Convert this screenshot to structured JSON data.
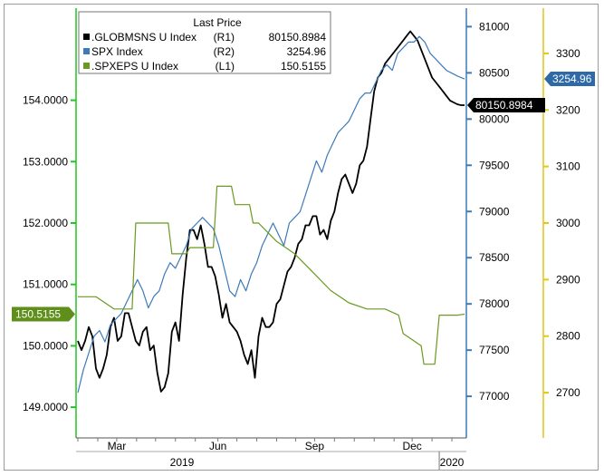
{
  "chart_data": {
    "type": "line",
    "legend": {
      "title": "Last Price",
      "placement": "top-left",
      "entries": [
        {
          "label": ".GLOBMSNS U Index",
          "axis": "(R1)",
          "value": "80150.8984",
          "color": "#000000"
        },
        {
          "label": "SPX Index",
          "axis": "(R2)",
          "value": "3254.96",
          "color": "#3d7ab8"
        },
        {
          "label": ".SPXEPS U Index",
          "axis": "(L1)",
          "value": "150.5155",
          "color": "#6a9a1f"
        }
      ]
    },
    "x_ticks": [
      "Mar",
      "Jun",
      "Sep",
      "Dec"
    ],
    "x_years": [
      "2019",
      "2020"
    ],
    "axes": {
      "L1": {
        "min": 148.5,
        "max": 155.5,
        "ticks": [
          "149.0000",
          "150.0000",
          "151.0000",
          "152.0000",
          "153.0000",
          "154.0000"
        ],
        "color": "#22c422"
      },
      "R1": {
        "min": 76550,
        "max": 81200,
        "ticks": [
          "77000",
          "77500",
          "78000",
          "78500",
          "79000",
          "79500",
          "80000",
          "80500",
          "81000"
        ],
        "color": "#3d7ab8"
      },
      "R2": {
        "min": 2620,
        "max": 3380,
        "ticks": [
          "2700",
          "2800",
          "2900",
          "3000",
          "3100",
          "3200",
          "3300"
        ],
        "color": "#e6c619"
      }
    },
    "last_value_tags": {
      "L1": "150.5155",
      "R1": "80150.8984",
      "R2": "3254.96"
    },
    "series": [
      {
        "name": ".GLOBMSNS U Index",
        "axis": "R1",
        "color": "#000000",
        "x": [
          0,
          4,
          8,
          12,
          16,
          20,
          24,
          28,
          32,
          36,
          40,
          44,
          48,
          52,
          56,
          60,
          64,
          68,
          72,
          76,
          80,
          84,
          88,
          92,
          96,
          100,
          104,
          108,
          112,
          116,
          120,
          124,
          128,
          132,
          136,
          140,
          144,
          148,
          152,
          156,
          160,
          164,
          168,
          172,
          176,
          180,
          184,
          188,
          192,
          196,
          200,
          204,
          208,
          212,
          216,
          220,
          224,
          228,
          232,
          236,
          240,
          244,
          248,
          252,
          256,
          260,
          264,
          268,
          272,
          276,
          280,
          284,
          288,
          292,
          296,
          300,
          304,
          308,
          312,
          316,
          320,
          324,
          328,
          332,
          336,
          340,
          344,
          348,
          352,
          356,
          360,
          364,
          368,
          372,
          376,
          380,
          384,
          388,
          392,
          396,
          400,
          404,
          408,
          412,
          416,
          420,
          424,
          428
        ],
        "y": [
          77600,
          77500,
          77600,
          77750,
          77650,
          77300,
          77200,
          77300,
          77450,
          77750,
          77850,
          77600,
          77650,
          77900,
          77900,
          77750,
          77600,
          77550,
          77700,
          77750,
          77500,
          77550,
          77250,
          77050,
          77100,
          77250,
          77700,
          77800,
          77600,
          78100,
          78500,
          78800,
          78800,
          78700,
          78850,
          78650,
          78400,
          78400,
          78300,
          78100,
          77850,
          78000,
          77800,
          77750,
          77700,
          77600,
          77450,
          77350,
          77500,
          77200,
          77650,
          77850,
          77750,
          77750,
          77800,
          78000,
          78050,
          78200,
          78350,
          78400,
          78500,
          78650,
          78700,
          78850,
          78850,
          78950,
          78950,
          78750,
          78800,
          78700,
          78900,
          79000,
          79200,
          79350,
          79400,
          79300,
          79200,
          79300,
          79500,
          79550,
          79700,
          80000,
          80300,
          80450,
          80500,
          80600,
          80650,
          80700,
          80750,
          80800,
          80850,
          80900,
          80950,
          80900,
          80850,
          80750,
          80650,
          80550,
          80450,
          80400,
          80350,
          80300,
          80250,
          80200,
          80180,
          80160,
          80150,
          80150
        ]
      },
      {
        "name": "SPX Index",
        "axis": "R2",
        "color": "#3d7ab8",
        "x": [
          0,
          6,
          12,
          18,
          24,
          30,
          36,
          42,
          48,
          54,
          60,
          66,
          72,
          78,
          84,
          90,
          96,
          102,
          108,
          114,
          120,
          126,
          132,
          138,
          144,
          150,
          156,
          162,
          168,
          174,
          180,
          186,
          192,
          198,
          204,
          210,
          216,
          222,
          228,
          234,
          240,
          246,
          252,
          258,
          264,
          270,
          276,
          282,
          288,
          294,
          300,
          306,
          312,
          318,
          324,
          330,
          336,
          342,
          348,
          354,
          360,
          366,
          372,
          378,
          384,
          390,
          396,
          402,
          408,
          414,
          420,
          426,
          428
        ],
        "y": [
          2700,
          2740,
          2770,
          2800,
          2810,
          2790,
          2820,
          2830,
          2840,
          2860,
          2880,
          2900,
          2880,
          2850,
          2870,
          2880,
          2910,
          2930,
          2920,
          2940,
          2960,
          2990,
          3000,
          3010,
          3000,
          2990,
          2960,
          2920,
          2880,
          2870,
          2900,
          2880,
          2910,
          2930,
          2960,
          2980,
          3000,
          2980,
          2960,
          3000,
          3010,
          3020,
          3050,
          3080,
          3110,
          3090,
          3120,
          3140,
          3160,
          3170,
          3180,
          3200,
          3220,
          3230,
          3230,
          3250,
          3270,
          3280,
          3270,
          3300,
          3310,
          3320,
          3320,
          3330,
          3320,
          3300,
          3290,
          3280,
          3270,
          3265,
          3260,
          3256,
          3255
        ]
      },
      {
        "name": ".SPXEPS U Index",
        "axis": "L1",
        "color": "#6a9a1f",
        "x": [
          0,
          20,
          40,
          44,
          60,
          64,
          100,
          104,
          120,
          124,
          150,
          154,
          170,
          174,
          190,
          194,
          200,
          220,
          240,
          260,
          280,
          300,
          320,
          340,
          355,
          360,
          380,
          383,
          395,
          400,
          420,
          428
        ],
        "y": [
          150.8,
          150.8,
          150.6,
          150.6,
          150.6,
          152.0,
          152.0,
          151.5,
          151.5,
          151.6,
          151.6,
          152.6,
          152.6,
          152.3,
          152.3,
          152.0,
          152.0,
          151.7,
          151.5,
          151.2,
          150.9,
          150.7,
          150.6,
          150.6,
          150.5,
          150.2,
          150.0,
          149.7,
          149.7,
          150.5,
          150.5,
          150.5155
        ]
      }
    ]
  }
}
